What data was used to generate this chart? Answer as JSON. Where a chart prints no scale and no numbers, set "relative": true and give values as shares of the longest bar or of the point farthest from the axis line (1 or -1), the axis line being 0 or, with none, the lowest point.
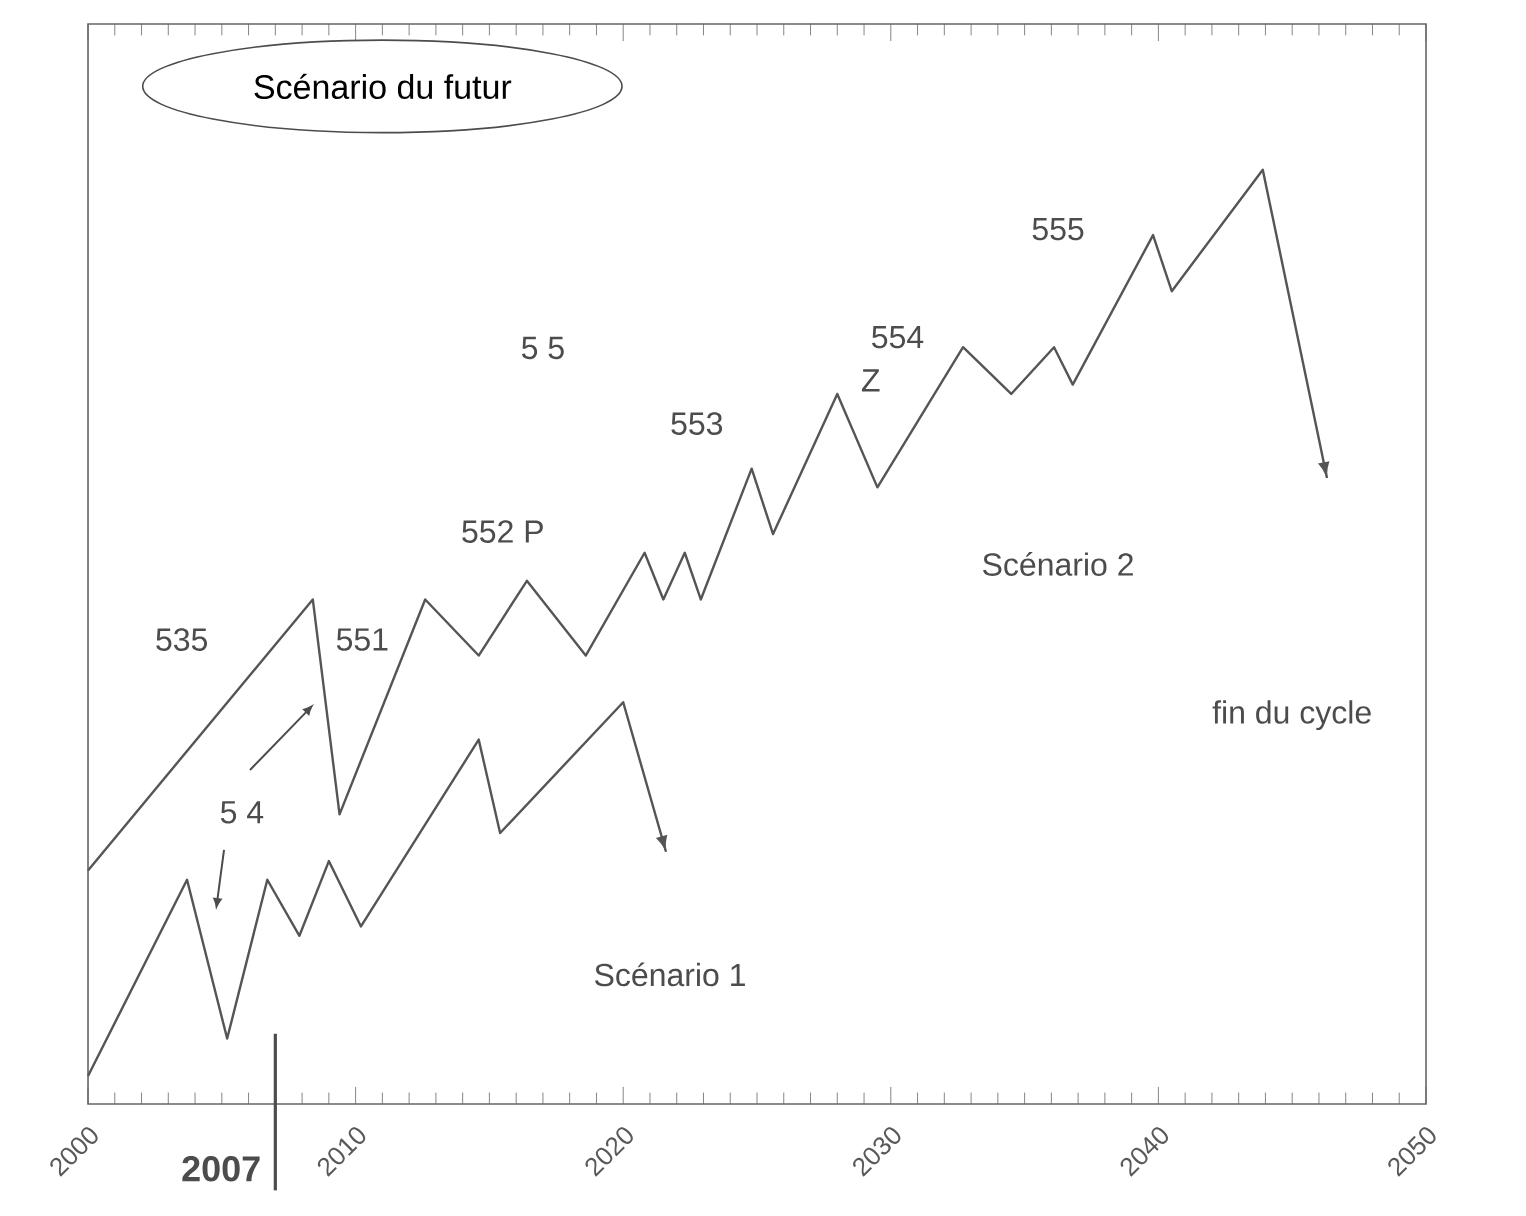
{
  "chart_data": {
    "type": "line",
    "title": "Scénario du futur",
    "relative": true,
    "series": [
      {
        "color": "#555555",
        "x": [
          2000.0,
          2003.7,
          2005.2,
          2006.7,
          2007.9,
          2009.0,
          2010.2,
          2014.6,
          2015.4,
          2020.0,
          2021.6
        ],
        "values": [
          0.03,
          0.24,
          0.07,
          0.24,
          0.18,
          0.26,
          0.19,
          0.39,
          0.29,
          0.43,
          0.27
        ]
      },
      {
        "color": "#555555",
        "x": [
          2000.0,
          2008.4,
          2009.4,
          2012.6,
          2014.6,
          2016.4,
          2018.6,
          2020.8,
          2021.5,
          2022.3,
          2022.9,
          2024.8,
          2025.6,
          2028.0,
          2029.5,
          2032.7,
          2034.5,
          2036.1,
          2036.8,
          2039.8,
          2040.5,
          2043.9,
          2046.3
        ],
        "values": [
          0.25,
          0.54,
          0.31,
          0.54,
          0.48,
          0.56,
          0.48,
          0.59,
          0.54,
          0.59,
          0.54,
          0.68,
          0.61,
          0.76,
          0.66,
          0.81,
          0.76,
          0.81,
          0.77,
          0.93,
          0.87,
          1.0,
          0.67
        ]
      }
    ],
    "xlim": [
      2000,
      2050
    ],
    "xticks": [
      2000,
      2010,
      2020,
      2030,
      2040,
      2050
    ],
    "tick_labels": "x",
    "grid": false,
    "marker": "none",
    "line_style": "solid",
    "ref_lines": [
      {
        "axis": "x",
        "value": 2007,
        "label": "2007"
      }
    ],
    "annotations": [
      "535",
      "5 4",
      "551",
      "552 P",
      "5 5",
      "553",
      "554",
      "Z",
      "555",
      "Scénario 2",
      "fin du cycle",
      "Scénario 1"
    ]
  }
}
